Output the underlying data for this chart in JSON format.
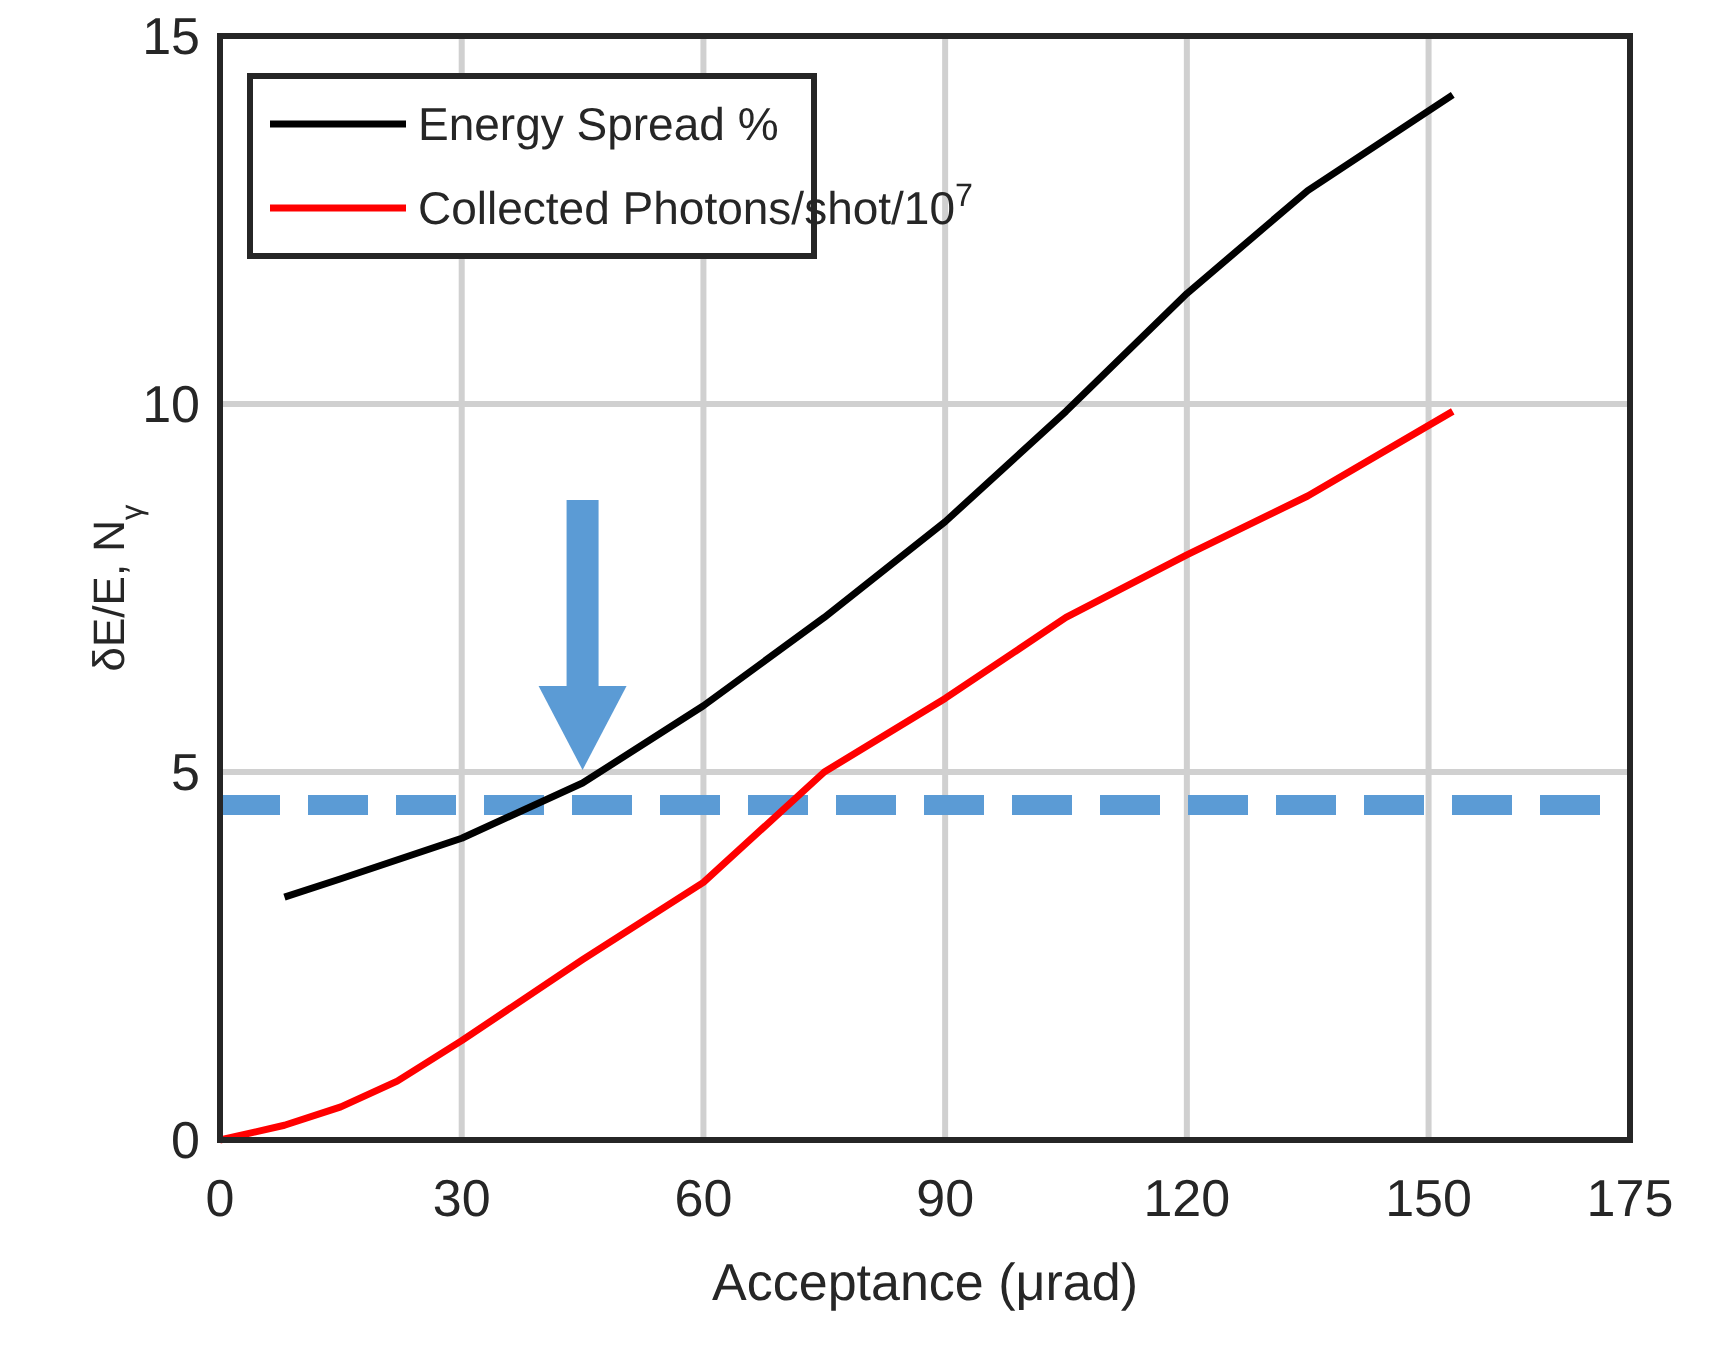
{
  "chart_data": {
    "type": "line",
    "xlabel": "Acceptance (μrad)",
    "ylabel": "δE/E, N$_{γ}$",
    "xlim": [
      0,
      175
    ],
    "xticks": [
      0,
      30,
      60,
      90,
      120,
      150,
      175
    ],
    "ylim": [
      0,
      15
    ],
    "yticks": [
      0,
      5,
      10,
      15
    ],
    "grid": true,
    "legend": "top left",
    "line_style": "solid",
    "marker": "none",
    "series": [
      {
        "name": "Energy Spread %",
        "color": "#000000",
        "x": [
          8,
          15,
          30,
          45,
          60,
          75,
          90,
          105,
          120,
          135,
          153
        ],
        "values": [
          3.3,
          3.55,
          4.1,
          4.85,
          5.9,
          7.1,
          8.4,
          9.9,
          11.5,
          12.9,
          14.2
        ]
      },
      {
        "name": "Collected Photons/shot/10$^{7}$",
        "color": "#ff0000",
        "x": [
          0,
          8,
          15,
          22,
          30,
          45,
          60,
          75,
          90,
          105,
          120,
          135,
          153
        ],
        "values": [
          0,
          0.2,
          0.45,
          0.8,
          1.35,
          2.45,
          3.5,
          5.0,
          6.0,
          7.1,
          7.95,
          8.75,
          9.9
        ]
      }
    ],
    "ref_lines": [
      {
        "axis": "y",
        "value": 4.55,
        "color": "#5b9bd5",
        "line_style": "dashed"
      }
    ]
  }
}
